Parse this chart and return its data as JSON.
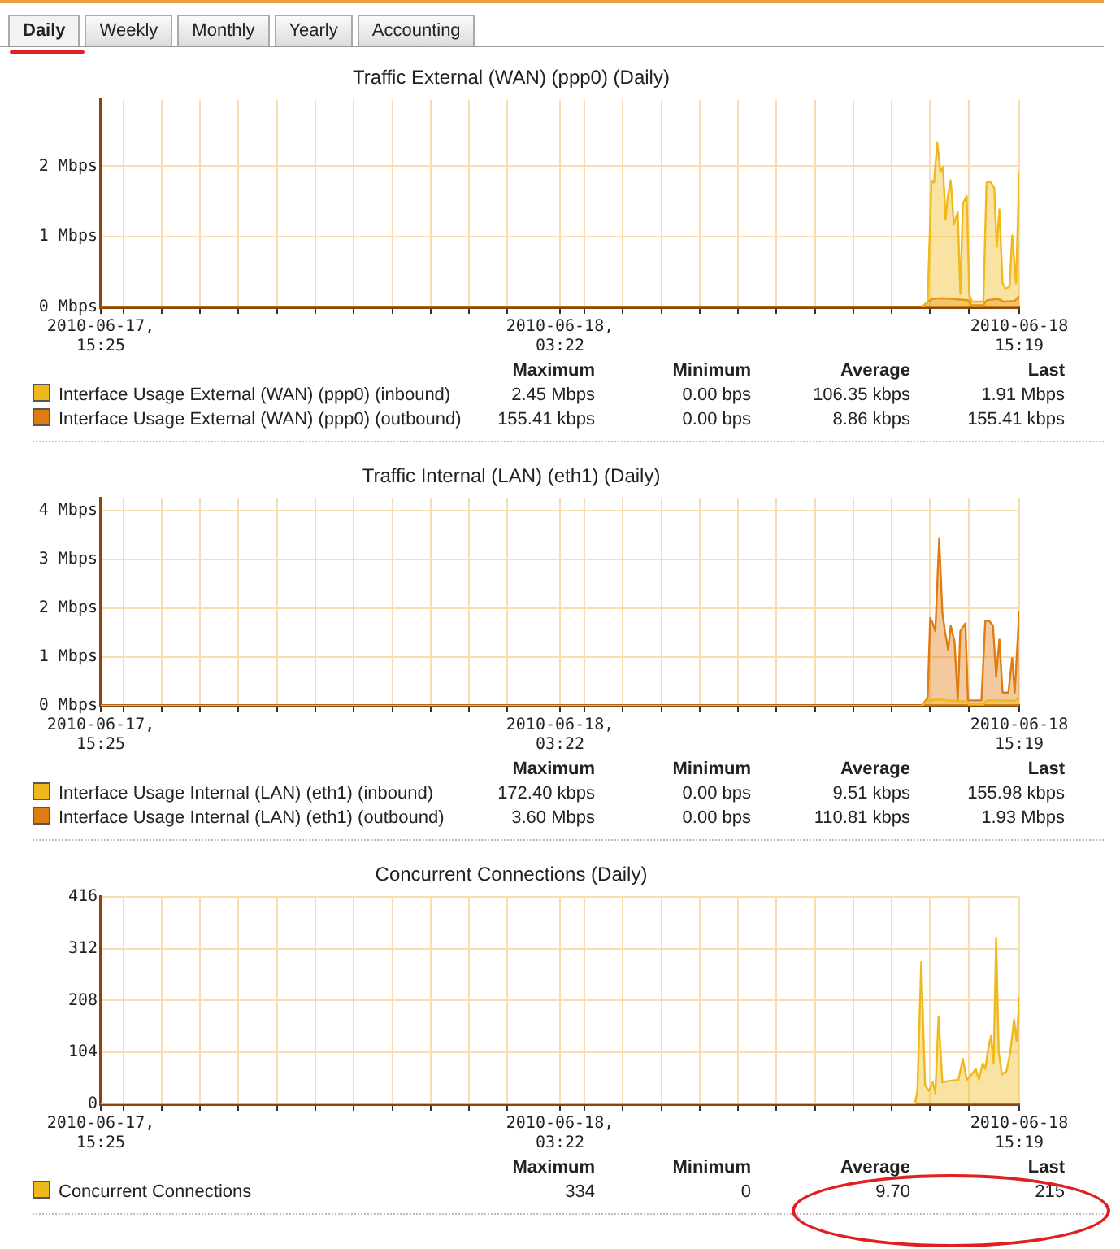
{
  "chart_data": [
    {
      "type": "other",
      "annotations": [
        "Daily",
        "Weekly",
        "Monthly",
        "Yearly",
        "Accounting"
      ]
    },
    {
      "type": "area",
      "title": "Traffic External (WAN) (ppp0) (Daily)",
      "marker": "none",
      "grid": true,
      "legend": "bottom",
      "xlim": [
        "2010-06-17T15:25",
        "2010-06-18T15:19"
      ],
      "xticks": [
        {
          "value": "2010-06-17T15:25",
          "label": "2010-06-17,\n15:25"
        },
        {
          "value": "2010-06-17T16:00",
          "label": null
        },
        {
          "value": "2010-06-17T17:00",
          "label": null
        },
        {
          "value": "2010-06-17T18:00",
          "label": null
        },
        {
          "value": "2010-06-17T19:00",
          "label": null
        },
        {
          "value": "2010-06-17T20:00",
          "label": null
        },
        {
          "value": "2010-06-17T21:00",
          "label": null
        },
        {
          "value": "2010-06-17T22:00",
          "label": null
        },
        {
          "value": "2010-06-17T23:00",
          "label": null
        },
        {
          "value": "2010-06-18T00:00",
          "label": null
        },
        {
          "value": "2010-06-18T01:00",
          "label": null
        },
        {
          "value": "2010-06-18T02:00",
          "label": null
        },
        {
          "value": "2010-06-18T03:22",
          "label": "2010-06-18,\n03:22"
        },
        {
          "value": "2010-06-18T04:00",
          "label": null
        },
        {
          "value": "2010-06-18T05:00",
          "label": null
        },
        {
          "value": "2010-06-18T06:00",
          "label": null
        },
        {
          "value": "2010-06-18T07:00",
          "label": null
        },
        {
          "value": "2010-06-18T08:00",
          "label": null
        },
        {
          "value": "2010-06-18T09:00",
          "label": null
        },
        {
          "value": "2010-06-18T10:00",
          "label": null
        },
        {
          "value": "2010-06-18T11:00",
          "label": null
        },
        {
          "value": "2010-06-18T12:00",
          "label": null
        },
        {
          "value": "2010-06-18T13:00",
          "label": null
        },
        {
          "value": "2010-06-18T14:00",
          "label": null
        },
        {
          "value": "2010-06-18T15:19",
          "label": "2010-06-18\n15:19"
        }
      ],
      "ylim": [
        0,
        2.94
      ],
      "yticks": [
        {
          "value": 0,
          "label": "0 Mbps"
        },
        {
          "value": 1,
          "label": "1 Mbps"
        },
        {
          "value": 2,
          "label": "2 Mbps"
        }
      ],
      "series": [
        {
          "name": "Interface Usage External (WAN) (ppp0) (inbound)",
          "color": "#f0b81a",
          "x": [
            "2010-06-17T15:25",
            "2010-06-18T12:47",
            "2010-06-18T12:56",
            "2010-06-18T13:02",
            "2010-06-18T13:06",
            "2010-06-18T13:11",
            "2010-06-18T13:16",
            "2010-06-18T13:20",
            "2010-06-18T13:24",
            "2010-06-18T13:27",
            "2010-06-18T13:32",
            "2010-06-18T13:37",
            "2010-06-18T13:43",
            "2010-06-18T13:47",
            "2010-06-18T13:51",
            "2010-06-18T13:57",
            "2010-06-18T14:01",
            "2010-06-18T14:05",
            "2010-06-18T14:23",
            "2010-06-18T14:28",
            "2010-06-18T14:34",
            "2010-06-18T14:40",
            "2010-06-18T14:44",
            "2010-06-18T14:48",
            "2010-06-18T14:53",
            "2010-06-18T14:58",
            "2010-06-18T15:04",
            "2010-06-18T15:08",
            "2010-06-18T15:14",
            "2010-06-18T15:19"
          ],
          "values": [
            0,
            0,
            0.08,
            1.8,
            1.77,
            2.33,
            1.92,
            1.99,
            1.24,
            1.54,
            1.8,
            1.17,
            1.35,
            0.19,
            1.47,
            1.58,
            0.19,
            0.08,
            0.08,
            1.77,
            1.78,
            1.69,
            0.86,
            1.39,
            0.34,
            0.26,
            0.3,
            1.02,
            0.34,
            1.91
          ]
        },
        {
          "name": "Interface Usage External (WAN) (ppp0) (outbound)",
          "color": "#e07b10",
          "x": [
            "2010-06-17T15:25",
            "2010-06-18T12:47",
            "2010-06-18T12:56",
            "2010-06-18T13:04",
            "2010-06-18T13:17",
            "2010-06-18T13:34",
            "2010-06-18T13:59",
            "2010-06-18T14:05",
            "2010-06-18T14:23",
            "2010-06-18T14:28",
            "2010-06-18T14:46",
            "2010-06-18T14:55",
            "2010-06-18T15:12",
            "2010-06-18T15:19"
          ],
          "values": [
            0,
            0,
            0.08,
            0.12,
            0.13,
            0.12,
            0.1,
            0.03,
            0.03,
            0.1,
            0.12,
            0.08,
            0.09,
            0.16
          ]
        }
      ],
      "annotations": [
        "Maximum",
        "Minimum",
        "Average",
        "Last",
        "2.45 Mbps",
        "0.00 bps",
        "106.35 kbps",
        "1.91 Mbps",
        "155.41 kbps",
        "0.00 bps",
        "8.86 kbps",
        "155.41 kbps"
      ]
    },
    {
      "type": "area",
      "title": "Traffic Internal (LAN) (eth1) (Daily)",
      "marker": "none",
      "grid": true,
      "legend": "bottom",
      "xlim": [
        "2010-06-17T15:25",
        "2010-06-18T15:19"
      ],
      "xticks": [
        {
          "value": "2010-06-17T15:25",
          "label": "2010-06-17,\n15:25"
        },
        {
          "value": "2010-06-17T16:00",
          "label": null
        },
        {
          "value": "2010-06-17T17:00",
          "label": null
        },
        {
          "value": "2010-06-17T18:00",
          "label": null
        },
        {
          "value": "2010-06-17T19:00",
          "label": null
        },
        {
          "value": "2010-06-17T20:00",
          "label": null
        },
        {
          "value": "2010-06-17T21:00",
          "label": null
        },
        {
          "value": "2010-06-17T22:00",
          "label": null
        },
        {
          "value": "2010-06-17T23:00",
          "label": null
        },
        {
          "value": "2010-06-18T00:00",
          "label": null
        },
        {
          "value": "2010-06-18T01:00",
          "label": null
        },
        {
          "value": "2010-06-18T02:00",
          "label": null
        },
        {
          "value": "2010-06-18T03:22",
          "label": "2010-06-18,\n03:22"
        },
        {
          "value": "2010-06-18T04:00",
          "label": null
        },
        {
          "value": "2010-06-18T05:00",
          "label": null
        },
        {
          "value": "2010-06-18T06:00",
          "label": null
        },
        {
          "value": "2010-06-18T07:00",
          "label": null
        },
        {
          "value": "2010-06-18T08:00",
          "label": null
        },
        {
          "value": "2010-06-18T09:00",
          "label": null
        },
        {
          "value": "2010-06-18T10:00",
          "label": null
        },
        {
          "value": "2010-06-18T11:00",
          "label": null
        },
        {
          "value": "2010-06-18T12:00",
          "label": null
        },
        {
          "value": "2010-06-18T13:00",
          "label": null
        },
        {
          "value": "2010-06-18T14:00",
          "label": null
        },
        {
          "value": "2010-06-18T15:19",
          "label": "2010-06-18\n15:19"
        }
      ],
      "ylim": [
        0,
        4.25
      ],
      "yticks": [
        {
          "value": 0,
          "label": "0 Mbps"
        },
        {
          "value": 1,
          "label": "1 Mbps"
        },
        {
          "value": 2,
          "label": "2 Mbps"
        },
        {
          "value": 3,
          "label": "3 Mbps"
        },
        {
          "value": 4,
          "label": "4 Mbps"
        }
      ],
      "series": [
        {
          "name": "Interface Usage Internal (LAN) (eth1) (inbound)",
          "color": "#f0b81a",
          "x": [
            "2010-06-17T15:25",
            "2010-06-18T12:47",
            "2010-06-18T12:56",
            "2010-06-18T13:13",
            "2010-06-18T13:30",
            "2010-06-18T13:55",
            "2010-06-18T14:00",
            "2010-06-18T14:23",
            "2010-06-18T14:28",
            "2010-06-18T14:51",
            "2010-06-18T15:12",
            "2010-06-18T15:19"
          ],
          "values": [
            0,
            0,
            0.11,
            0.13,
            0.11,
            0.09,
            0.03,
            0.03,
            0.11,
            0.11,
            0.1,
            0.16
          ]
        },
        {
          "name": "Interface Usage Internal (LAN) (eth1) (outbound)",
          "color": "#e07b10",
          "x": [
            "2010-06-17T15:25",
            "2010-06-18T12:47",
            "2010-06-18T12:56",
            "2010-06-18T13:00",
            "2010-06-18T13:04",
            "2010-06-18T13:08",
            "2010-06-18T13:14",
            "2010-06-18T13:19",
            "2010-06-18T13:23",
            "2010-06-18T13:28",
            "2010-06-18T13:32",
            "2010-06-18T13:38",
            "2010-06-18T13:43",
            "2010-06-18T13:47",
            "2010-06-18T13:55",
            "2010-06-18T13:59",
            "2010-06-18T14:07",
            "2010-06-18T14:20",
            "2010-06-18T14:26",
            "2010-06-18T14:32",
            "2010-06-18T14:38",
            "2010-06-18T14:43",
            "2010-06-18T14:48",
            "2010-06-18T14:53",
            "2010-06-18T15:02",
            "2010-06-18T15:08",
            "2010-06-18T15:12",
            "2010-06-18T15:19"
          ],
          "values": [
            0,
            0,
            0.16,
            1.8,
            1.69,
            1.53,
            3.42,
            1.91,
            1.53,
            1.15,
            1.64,
            1.31,
            0.11,
            1.53,
            1.69,
            0.11,
            0.11,
            0.11,
            1.74,
            1.74,
            1.64,
            0.6,
            1.36,
            0.27,
            0.27,
            0.98,
            0.27,
            1.93
          ]
        }
      ],
      "annotations": [
        "Maximum",
        "Minimum",
        "Average",
        "Last",
        "172.40 kbps",
        "0.00 bps",
        "9.51 kbps",
        "155.98 kbps",
        "3.60 Mbps",
        "0.00 bps",
        "110.81 kbps",
        "1.93 Mbps"
      ]
    },
    {
      "type": "area",
      "title": "Concurrent Connections (Daily)",
      "marker": "none",
      "grid": true,
      "legend": "bottom",
      "xlim": [
        "2010-06-17T15:25",
        "2010-06-18T15:19"
      ],
      "xticks": [
        {
          "value": "2010-06-17T15:25",
          "label": "2010-06-17,\n15:25"
        },
        {
          "value": "2010-06-17T16:00",
          "label": null
        },
        {
          "value": "2010-06-17T17:00",
          "label": null
        },
        {
          "value": "2010-06-17T18:00",
          "label": null
        },
        {
          "value": "2010-06-17T19:00",
          "label": null
        },
        {
          "value": "2010-06-17T20:00",
          "label": null
        },
        {
          "value": "2010-06-17T21:00",
          "label": null
        },
        {
          "value": "2010-06-17T22:00",
          "label": null
        },
        {
          "value": "2010-06-17T23:00",
          "label": null
        },
        {
          "value": "2010-06-18T00:00",
          "label": null
        },
        {
          "value": "2010-06-18T01:00",
          "label": null
        },
        {
          "value": "2010-06-18T02:00",
          "label": null
        },
        {
          "value": "2010-06-18T03:22",
          "label": "2010-06-18,\n03:22"
        },
        {
          "value": "2010-06-18T04:00",
          "label": null
        },
        {
          "value": "2010-06-18T05:00",
          "label": null
        },
        {
          "value": "2010-06-18T06:00",
          "label": null
        },
        {
          "value": "2010-06-18T07:00",
          "label": null
        },
        {
          "value": "2010-06-18T08:00",
          "label": null
        },
        {
          "value": "2010-06-18T09:00",
          "label": null
        },
        {
          "value": "2010-06-18T10:00",
          "label": null
        },
        {
          "value": "2010-06-18T11:00",
          "label": null
        },
        {
          "value": "2010-06-18T12:00",
          "label": null
        },
        {
          "value": "2010-06-18T13:00",
          "label": null
        },
        {
          "value": "2010-06-18T14:00",
          "label": null
        },
        {
          "value": "2010-06-18T15:19",
          "label": "2010-06-18\n15:19"
        }
      ],
      "ylim": [
        0,
        416
      ],
      "yticks": [
        0,
        104,
        208,
        312,
        416
      ],
      "series": [
        {
          "name": "Concurrent Connections",
          "color": "#f0b81a",
          "x": [
            "2010-06-17T15:25",
            "2010-06-18T12:36",
            "2010-06-18T12:40",
            "2010-06-18T12:46",
            "2010-06-18T12:52",
            "2010-06-18T12:58",
            "2010-06-18T13:04",
            "2010-06-18T13:08",
            "2010-06-18T13:13",
            "2010-06-18T13:19",
            "2010-06-18T13:31",
            "2010-06-18T13:44",
            "2010-06-18T13:51",
            "2010-06-18T13:57",
            "2010-06-18T14:05",
            "2010-06-18T14:11",
            "2010-06-18T14:16",
            "2010-06-18T14:22",
            "2010-06-18T14:26",
            "2010-06-18T14:31",
            "2010-06-18T14:35",
            "2010-06-18T14:39",
            "2010-06-18T14:43",
            "2010-06-18T14:47",
            "2010-06-18T14:52",
            "2010-06-18T14:59",
            "2010-06-18T15:05",
            "2010-06-18T15:11",
            "2010-06-18T15:15",
            "2010-06-18T15:19"
          ],
          "values": [
            0,
            0,
            27,
            285,
            38,
            27,
            44,
            22,
            175,
            44,
            47,
            49,
            91,
            49,
            60,
            71,
            49,
            82,
            71,
            115,
            137,
            82,
            334,
            104,
            60,
            66,
            104,
            170,
            126,
            215
          ]
        }
      ],
      "annotations": [
        "Maximum",
        "Minimum",
        "Average",
        "Last",
        "334",
        "0",
        "9.70",
        "215"
      ]
    }
  ]
}
